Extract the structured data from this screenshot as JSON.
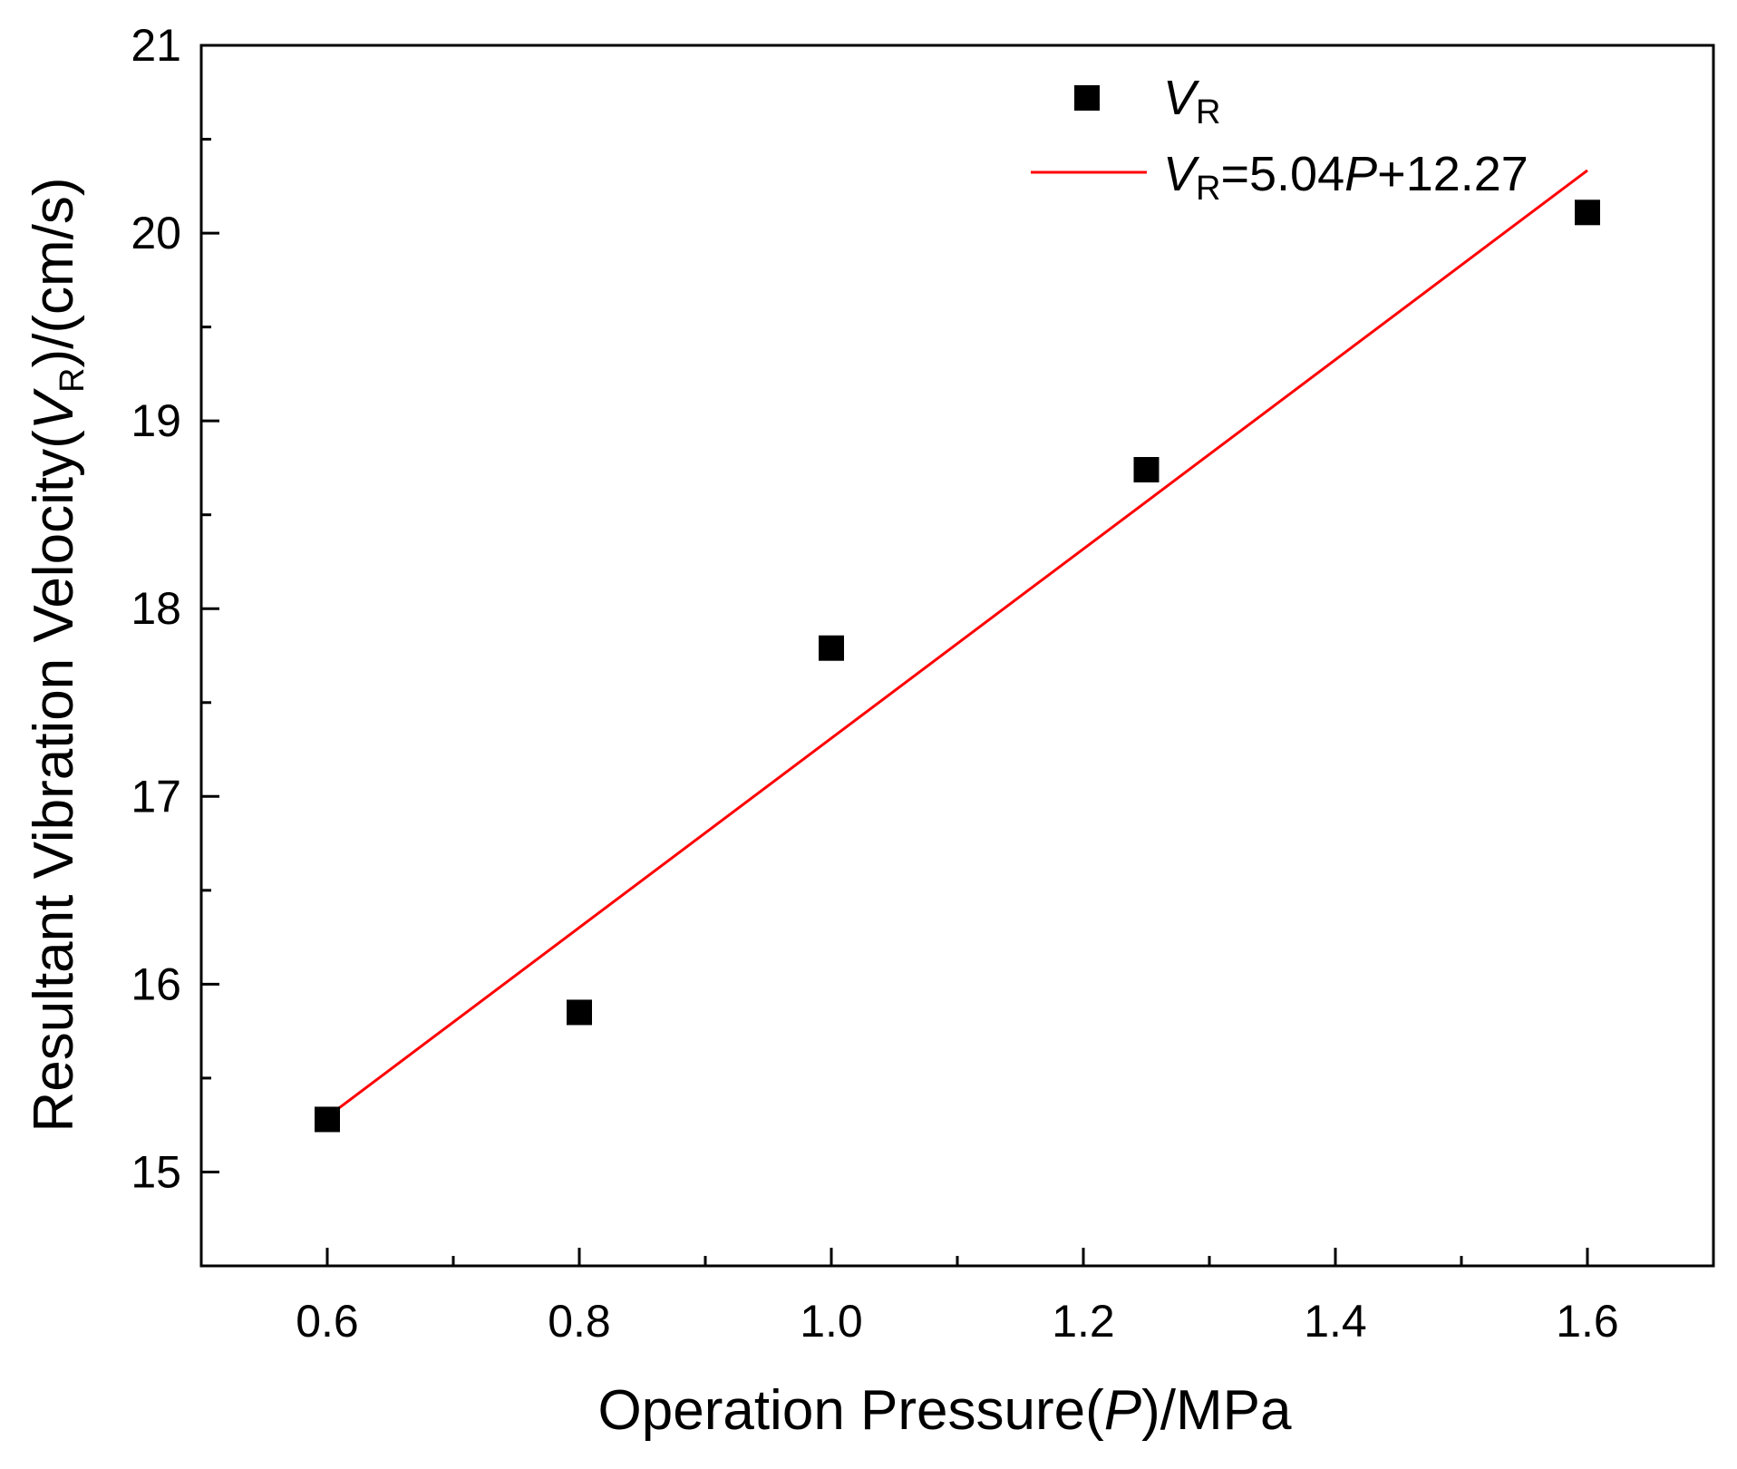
{
  "chart_data": {
    "type": "scatter",
    "title": "",
    "xlabel": {
      "prefix": "Operation Pressure(",
      "var": "P",
      "suffix": ")/MPa"
    },
    "ylabel": {
      "prefix": "Resultant Vibration Velocity(",
      "var": "V",
      "sub": "R",
      "suffix": ")/(cm/s)"
    },
    "xlim": [
      0.5,
      1.7
    ],
    "ylim": [
      14.5,
      21
    ],
    "x_ticks": [
      0.6,
      0.8,
      1.0,
      1.2,
      1.4,
      1.6
    ],
    "x_tick_labels": [
      "0.6",
      "0.8",
      "1.0",
      "1.2",
      "1.4",
      "1.6"
    ],
    "x_minor_ticks": [
      0.7,
      0.9,
      1.1,
      1.3,
      1.5
    ],
    "y_ticks": [
      15,
      16,
      17,
      18,
      19,
      20,
      21
    ],
    "y_tick_labels": [
      "15",
      "16",
      "17",
      "18",
      "19",
      "20",
      "21"
    ],
    "y_minor_ticks": [
      15.5,
      16.5,
      17.5,
      18.5,
      19.5,
      20.5
    ],
    "grid": false,
    "series": [
      {
        "name": "VR",
        "kind": "scatter",
        "marker": "square",
        "color": "#000000",
        "x": [
          0.6,
          0.8,
          1.0,
          1.25,
          1.6
        ],
        "y": [
          15.28,
          15.85,
          17.79,
          18.74,
          20.11
        ]
      },
      {
        "name": "VR=5.04P+12.27",
        "kind": "line",
        "color": "#ff0000",
        "slope": 5.04,
        "intercept": 12.27,
        "x_range": [
          0.6,
          1.6
        ]
      }
    ],
    "legend": {
      "position": "top-right",
      "entries": [
        {
          "var": "V",
          "sub": "R",
          "rest_pre": "",
          "rest_var": "",
          "rest_post": ""
        },
        {
          "var": "V",
          "sub": "R",
          "rest_pre": "=5.04",
          "rest_var": "P",
          "rest_post": "+12.27"
        }
      ]
    }
  }
}
